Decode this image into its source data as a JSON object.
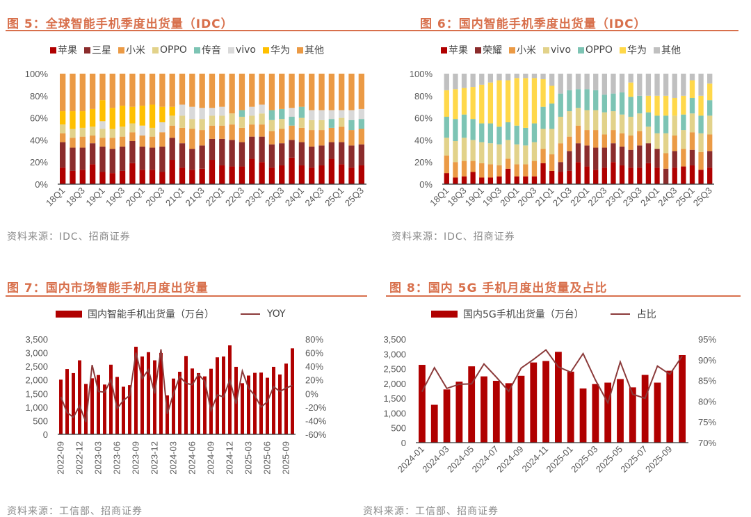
{
  "figures": [
    {
      "title": "图 5：全球智能手机季度出货量（IDC）",
      "source": "资料来源：IDC、招商证券"
    },
    {
      "title": "图 6：国内智能手机季度出货量（IDC）",
      "source": "资料来源：IDC、招商证券"
    },
    {
      "title": "图 7：国内市场智能手机月度出货量",
      "source": "资料来源：工信部、招商证券"
    },
    {
      "title": "图 8：国内 5G 手机月度出货量及占比",
      "source": "资料来源：工信部、招商证券"
    }
  ],
  "chart_data": [
    {
      "type": "bar",
      "stacked": true,
      "title": "全球智能手机季度出货量（IDC）",
      "ylim": [
        0,
        100
      ],
      "yticks": [
        "0%",
        "20%",
        "40%",
        "60%",
        "80%",
        "100%"
      ],
      "legend": "top",
      "categories": [
        "18Q1",
        "18Q2",
        "18Q3",
        "18Q4",
        "19Q1",
        "19Q2",
        "19Q3",
        "19Q4",
        "20Q1",
        "20Q2",
        "20Q3",
        "20Q4",
        "21Q1",
        "21Q2",
        "21Q3",
        "21Q4",
        "22Q1",
        "22Q2",
        "22Q3",
        "22Q4",
        "23Q1",
        "23Q2",
        "23Q3",
        "23Q4",
        "24Q1",
        "24Q2",
        "24Q3",
        "24Q4",
        "25Q1",
        "25Q2",
        "25Q3"
      ],
      "label_every": 2,
      "series": [
        {
          "name": "苹果",
          "color": "#b00000",
          "values": [
            15,
            12,
            13,
            18,
            11,
            10,
            12,
            19,
            13,
            13,
            11,
            22,
            15,
            13,
            14,
            22,
            17,
            16,
            16,
            23,
            20,
            15,
            17,
            24,
            17,
            15,
            17,
            23,
            18,
            15,
            17
          ]
        },
        {
          "name": "三星",
          "color": "#8b2c2c",
          "values": [
            23,
            21,
            20,
            19,
            23,
            22,
            22,
            20,
            21,
            20,
            23,
            20,
            22,
            19,
            21,
            19,
            24,
            24,
            22,
            20,
            23,
            21,
            20,
            16,
            21,
            19,
            18,
            15,
            20,
            20,
            19
          ]
        },
        {
          "name": "小米",
          "color": "#eb9a45",
          "values": [
            8,
            9,
            10,
            7,
            8,
            10,
            9,
            8,
            10,
            10,
            13,
            11,
            14,
            18,
            14,
            12,
            12,
            14,
            13,
            11,
            11,
            12,
            13,
            13,
            13,
            15,
            14,
            13,
            14,
            14,
            14
          ]
        },
        {
          "name": "OPPO",
          "color": "#e2d28a",
          "values": [
            8,
            8,
            8,
            8,
            8,
            8,
            9,
            8,
            0,
            8,
            0,
            9,
            11,
            9,
            10,
            9,
            9,
            10,
            10,
            8,
            10,
            10,
            9,
            0,
            9,
            9,
            9,
            0,
            8,
            0,
            0
          ]
        },
        {
          "name": "传音",
          "color": "#7dc4b4",
          "values": [
            0,
            0,
            0,
            0,
            0,
            0,
            0,
            0,
            0,
            0,
            0,
            0,
            0,
            0,
            0,
            0,
            0,
            0,
            6,
            0,
            0,
            9,
            9,
            8,
            10,
            0,
            0,
            8,
            0,
            9,
            9
          ]
        },
        {
          "name": "vivo",
          "color": "#d9d9d9",
          "values": [
            0,
            0,
            0,
            0,
            7,
            0,
            0,
            0,
            9,
            0,
            9,
            0,
            10,
            11,
            10,
            7,
            8,
            0,
            0,
            8,
            8,
            0,
            0,
            8,
            0,
            9,
            9,
            8,
            7,
            9,
            9
          ]
        },
        {
          "name": "华为",
          "color": "#ffc000",
          "values": [
            12,
            16,
            15,
            16,
            19,
            19,
            19,
            15,
            18,
            21,
            14,
            8,
            0,
            0,
            0,
            0,
            0,
            0,
            0,
            0,
            0,
            0,
            0,
            0,
            0,
            0,
            0,
            0,
            0,
            0,
            0
          ]
        },
        {
          "name": "其他",
          "color": "#eb9a45",
          "values": [
            34,
            34,
            34,
            32,
            24,
            31,
            29,
            30,
            29,
            28,
            30,
            30,
            28,
            30,
            31,
            31,
            30,
            36,
            33,
            30,
            28,
            33,
            32,
            31,
            30,
            33,
            33,
            33,
            33,
            33,
            32
          ]
        }
      ]
    },
    {
      "type": "bar",
      "stacked": true,
      "title": "国内智能手机季度出货量（IDC）",
      "ylim": [
        0,
        100
      ],
      "yticks": [
        "0%",
        "20%",
        "40%",
        "60%",
        "80%",
        "100%"
      ],
      "legend": "top",
      "categories": [
        "18Q1",
        "18Q2",
        "18Q3",
        "18Q4",
        "19Q1",
        "19Q2",
        "19Q3",
        "19Q4",
        "20Q1",
        "20Q2",
        "20Q3",
        "20Q4",
        "21Q1",
        "21Q2",
        "21Q3",
        "21Q4",
        "22Q1",
        "22Q2",
        "22Q3",
        "22Q4",
        "23Q1",
        "23Q2",
        "23Q3",
        "23Q4",
        "24Q1",
        "24Q2",
        "24Q3",
        "24Q4",
        "25Q1",
        "25Q2",
        "25Q3"
      ],
      "label_every": 2,
      "series": [
        {
          "name": "苹果",
          "color": "#b00000",
          "values": [
            10,
            6,
            7,
            11,
            6,
            6,
            7,
            14,
            7,
            7,
            7,
            19,
            12,
            11,
            12,
            20,
            16,
            13,
            15,
            20,
            17,
            15,
            15,
            19,
            15,
            0,
            15,
            16,
            17,
            13,
            15
          ]
        },
        {
          "name": "荣耀",
          "color": "#8b2c2c",
          "values": [
            0,
            0,
            0,
            0,
            0,
            0,
            0,
            0,
            0,
            0,
            0,
            0,
            0,
            9,
            18,
            17,
            19,
            20,
            18,
            17,
            17,
            16,
            20,
            18,
            17,
            14,
            15,
            0,
            14,
            0,
            15
          ]
        },
        {
          "name": "小米",
          "color": "#eb9a45",
          "values": [
            16,
            14,
            14,
            10,
            13,
            12,
            10,
            9,
            11,
            11,
            14,
            13,
            15,
            17,
            13,
            16,
            14,
            16,
            12,
            12,
            12,
            13,
            13,
            0,
            0,
            14,
            14,
            16,
            16,
            16,
            15
          ]
        },
        {
          "name": "vivo",
          "color": "#e2d28a",
          "values": [
            16,
            19,
            21,
            19,
            19,
            19,
            19,
            17,
            18,
            17,
            17,
            18,
            23,
            24,
            23,
            16,
            18,
            18,
            20,
            17,
            17,
            17,
            16,
            15,
            14,
            18,
            18,
            17,
            17,
            17,
            17
          ]
        },
        {
          "name": "OPPO",
          "color": "#7dc4b4",
          "values": [
            19,
            20,
            21,
            19,
            17,
            18,
            16,
            16,
            17,
            16,
            17,
            20,
            23,
            21,
            19,
            17,
            19,
            18,
            16,
            16,
            20,
            18,
            16,
            13,
            16,
            16,
            0,
            14,
            14,
            16,
            14
          ]
        },
        {
          "name": "华为",
          "color": "#ffd84a",
          "values": [
            24,
            27,
            24,
            29,
            35,
            37,
            42,
            38,
            43,
            45,
            41,
            25,
            16,
            0,
            0,
            0,
            0,
            0,
            0,
            0,
            0,
            13,
            0,
            15,
            18,
            18,
            16,
            17,
            16,
            18,
            15
          ]
        },
        {
          "name": "其他",
          "color": "#c0c0c0",
          "values": [
            15,
            14,
            13,
            12,
            10,
            8,
            6,
            6,
            4,
            4,
            4,
            5,
            11,
            18,
            15,
            14,
            14,
            15,
            19,
            18,
            17,
            8,
            20,
            20,
            20,
            20,
            22,
            20,
            6,
            20,
            9
          ]
        }
      ]
    },
    {
      "type": "bar",
      "title": "国内市场智能手机月度出货量",
      "legend": "top",
      "ylim": [
        0,
        3500
      ],
      "yticks": [
        "0",
        "500",
        "1,000",
        "1,500",
        "2,000",
        "2,500",
        "3,000",
        "3,500"
      ],
      "y2lim": [
        -60,
        80
      ],
      "y2ticks": [
        "-60%",
        "-40%",
        "-20%",
        "0%",
        "20%",
        "40%",
        "60%",
        "80%"
      ],
      "categories": [
        "2022-09",
        "2022-10",
        "2022-11",
        "2022-12",
        "2023-01",
        "2023-02",
        "2023-03",
        "2023-04",
        "2023-05",
        "2023-06",
        "2023-07",
        "2023-08",
        "2023-09",
        "2023-10",
        "2023-11",
        "2023-12",
        "2024-01",
        "2024-02",
        "2024-03",
        "2024-04",
        "2024-05",
        "2024-06",
        "2024-07",
        "2024-08",
        "2024-09",
        "2024-10",
        "2024-11",
        "2024-12",
        "2025-01",
        "2025-02",
        "2025-03",
        "2025-04",
        "2025-05",
        "2025-06",
        "2025-07",
        "2025-08",
        "2025-09",
        "2025-10"
      ],
      "label_every": 3,
      "bar_series": {
        "name": "国内智能手机出货量（万台）",
        "color": "#b00000",
        "values": [
          2010,
          2400,
          2250,
          2720,
          1850,
          2060,
          2180,
          1830,
          2560,
          2110,
          1750,
          1810,
          3220,
          2860,
          3020,
          2720,
          2990,
          1430,
          2050,
          2300,
          2880,
          2420,
          2250,
          2130,
          2410,
          2830,
          2860,
          3270,
          2480,
          1880,
          2160,
          2260,
          2270,
          2080,
          2480,
          2200,
          2600,
          3160
        ]
      },
      "line_series": {
        "name": "YOY",
        "color": "#8b3a3a",
        "axis": "right",
        "values": [
          -5,
          -28,
          -35,
          -18,
          -42,
          42,
          3,
          2,
          20,
          -22,
          -10,
          -3,
          60,
          22,
          35,
          0,
          65,
          -30,
          0,
          25,
          15,
          13,
          28,
          18,
          -25,
          -2,
          -5,
          20,
          -15,
          33,
          8,
          -3,
          -20,
          -12,
          10,
          3,
          8,
          12
        ]
      }
    },
    {
      "type": "bar",
      "title": "国内 5G 手机月度出货量及占比",
      "legend": "top",
      "ylim": [
        0,
        3500
      ],
      "yticks": [
        "0",
        "500",
        "1,000",
        "1,500",
        "2,000",
        "2,500",
        "3,000",
        "3,500"
      ],
      "y2lim": [
        70,
        95
      ],
      "y2ticks": [
        "70%",
        "75%",
        "80%",
        "85%",
        "90%",
        "95%"
      ],
      "categories": [
        "2024-01",
        "2024-02",
        "2024-03",
        "2024-04",
        "2024-05",
        "2024-06",
        "2024-07",
        "2024-08",
        "2024-09",
        "2024-10",
        "2024-11",
        "2024-12",
        "2025-01",
        "2025-02",
        "2025-03",
        "2025-04",
        "2025-05",
        "2025-06",
        "2025-07",
        "2025-08",
        "2025-09",
        "2025-10"
      ],
      "label_every": 2,
      "bar_series": {
        "name": "国内5G手机出货量（万台）",
        "color": "#b00000",
        "values": [
          2630,
          1280,
          1800,
          2060,
          2580,
          2240,
          2090,
          2010,
          2260,
          2710,
          2760,
          3070,
          2400,
          1830,
          1980,
          2030,
          2150,
          1870,
          2290,
          2030,
          2430,
          2960
        ]
      },
      "line_series": {
        "name": "占比",
        "color": "#8b3a3a",
        "axis": "right",
        "values": [
          82.3,
          88.1,
          83.1,
          84.1,
          84.2,
          89.0,
          85.8,
          82.4,
          88.0,
          90.1,
          92.4,
          88.3,
          87.0,
          91.5,
          85.1,
          79.6,
          89.5,
          81.7,
          80.7,
          88.5,
          86.5,
          90.9
        ]
      }
    }
  ]
}
